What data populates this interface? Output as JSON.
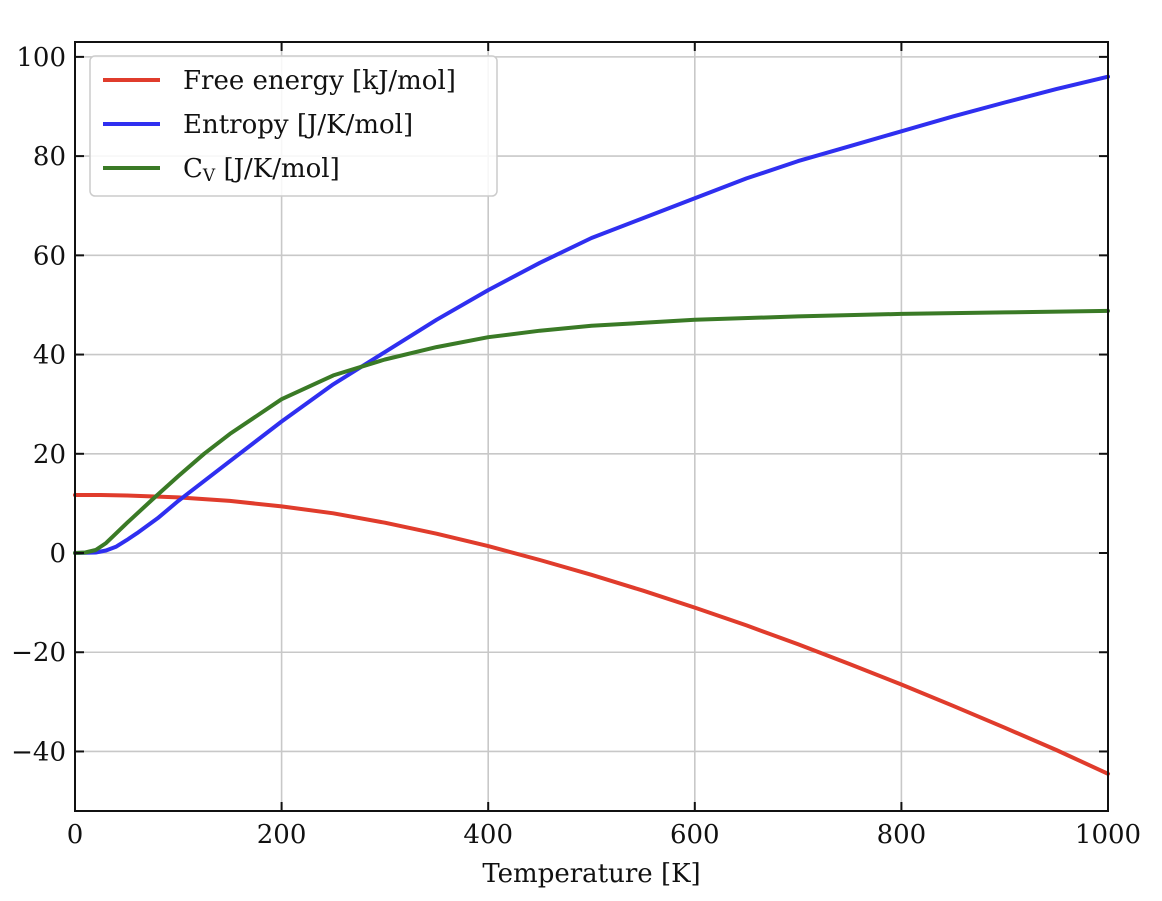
{
  "chart_data": {
    "type": "line",
    "title": "",
    "xlabel": "Temperature [K]",
    "ylabel": "",
    "xlim": [
      0,
      1000
    ],
    "ylim": [
      -52,
      103
    ],
    "grid": true,
    "legend_position": "top-left",
    "x_ticks": [
      0,
      200,
      400,
      600,
      800,
      1000
    ],
    "x_tick_labels": [
      "0",
      "200",
      "400",
      "600",
      "800",
      "1000"
    ],
    "y_ticks": [
      -40,
      -20,
      0,
      20,
      40,
      60,
      80,
      100
    ],
    "y_tick_labels": [
      "−40",
      "−20",
      "0",
      "20",
      "40",
      "60",
      "80",
      "100"
    ],
    "series": [
      {
        "name": "Free energy [kJ/mol]",
        "legend_main": "Free energy [kJ/mol]",
        "legend_sub": "",
        "legend_suffix": "",
        "color": "#e03c2c",
        "x": [
          0,
          25,
          50,
          100,
          150,
          200,
          250,
          300,
          350,
          400,
          450,
          500,
          550,
          600,
          650,
          700,
          750,
          800,
          850,
          900,
          950,
          1000
        ],
        "y": [
          11.7,
          11.7,
          11.6,
          11.2,
          10.5,
          9.4,
          8.0,
          6.1,
          3.9,
          1.4,
          -1.4,
          -4.4,
          -7.6,
          -11.0,
          -14.6,
          -18.4,
          -22.4,
          -26.5,
          -30.8,
          -35.2,
          -39.7,
          -44.5
        ]
      },
      {
        "name": "Entropy [J/K/mol]",
        "legend_main": "Entropy [J/K/mol]",
        "legend_sub": "",
        "legend_suffix": "",
        "color": "#2f2ff0",
        "x": [
          0,
          20,
          30,
          40,
          50,
          60,
          80,
          100,
          150,
          200,
          250,
          300,
          350,
          400,
          450,
          500,
          550,
          600,
          650,
          700,
          750,
          800,
          850,
          900,
          950,
          1000
        ],
        "y": [
          0,
          0.1,
          0.5,
          1.3,
          2.6,
          4.0,
          7.0,
          10.5,
          18.5,
          26.5,
          34.0,
          40.5,
          47.0,
          53.0,
          58.5,
          63.5,
          67.5,
          71.5,
          75.5,
          79.0,
          82.0,
          85.0,
          88.0,
          90.8,
          93.5,
          96.0
        ]
      },
      {
        "name": "C_V [J/K/mol]",
        "legend_main": "C",
        "legend_sub": "V",
        "legend_suffix": " [J/K/mol]",
        "color": "#3a7a26",
        "x": [
          0,
          10,
          20,
          30,
          40,
          50,
          75,
          100,
          125,
          150,
          200,
          250,
          300,
          350,
          400,
          450,
          500,
          600,
          700,
          800,
          900,
          1000
        ],
        "y": [
          0,
          0.1,
          0.6,
          2.0,
          4.0,
          6.0,
          10.8,
          15.5,
          20.0,
          24.0,
          31.0,
          35.8,
          39.0,
          41.5,
          43.5,
          44.8,
          45.8,
          47.0,
          47.7,
          48.2,
          48.5,
          48.8
        ]
      }
    ]
  }
}
